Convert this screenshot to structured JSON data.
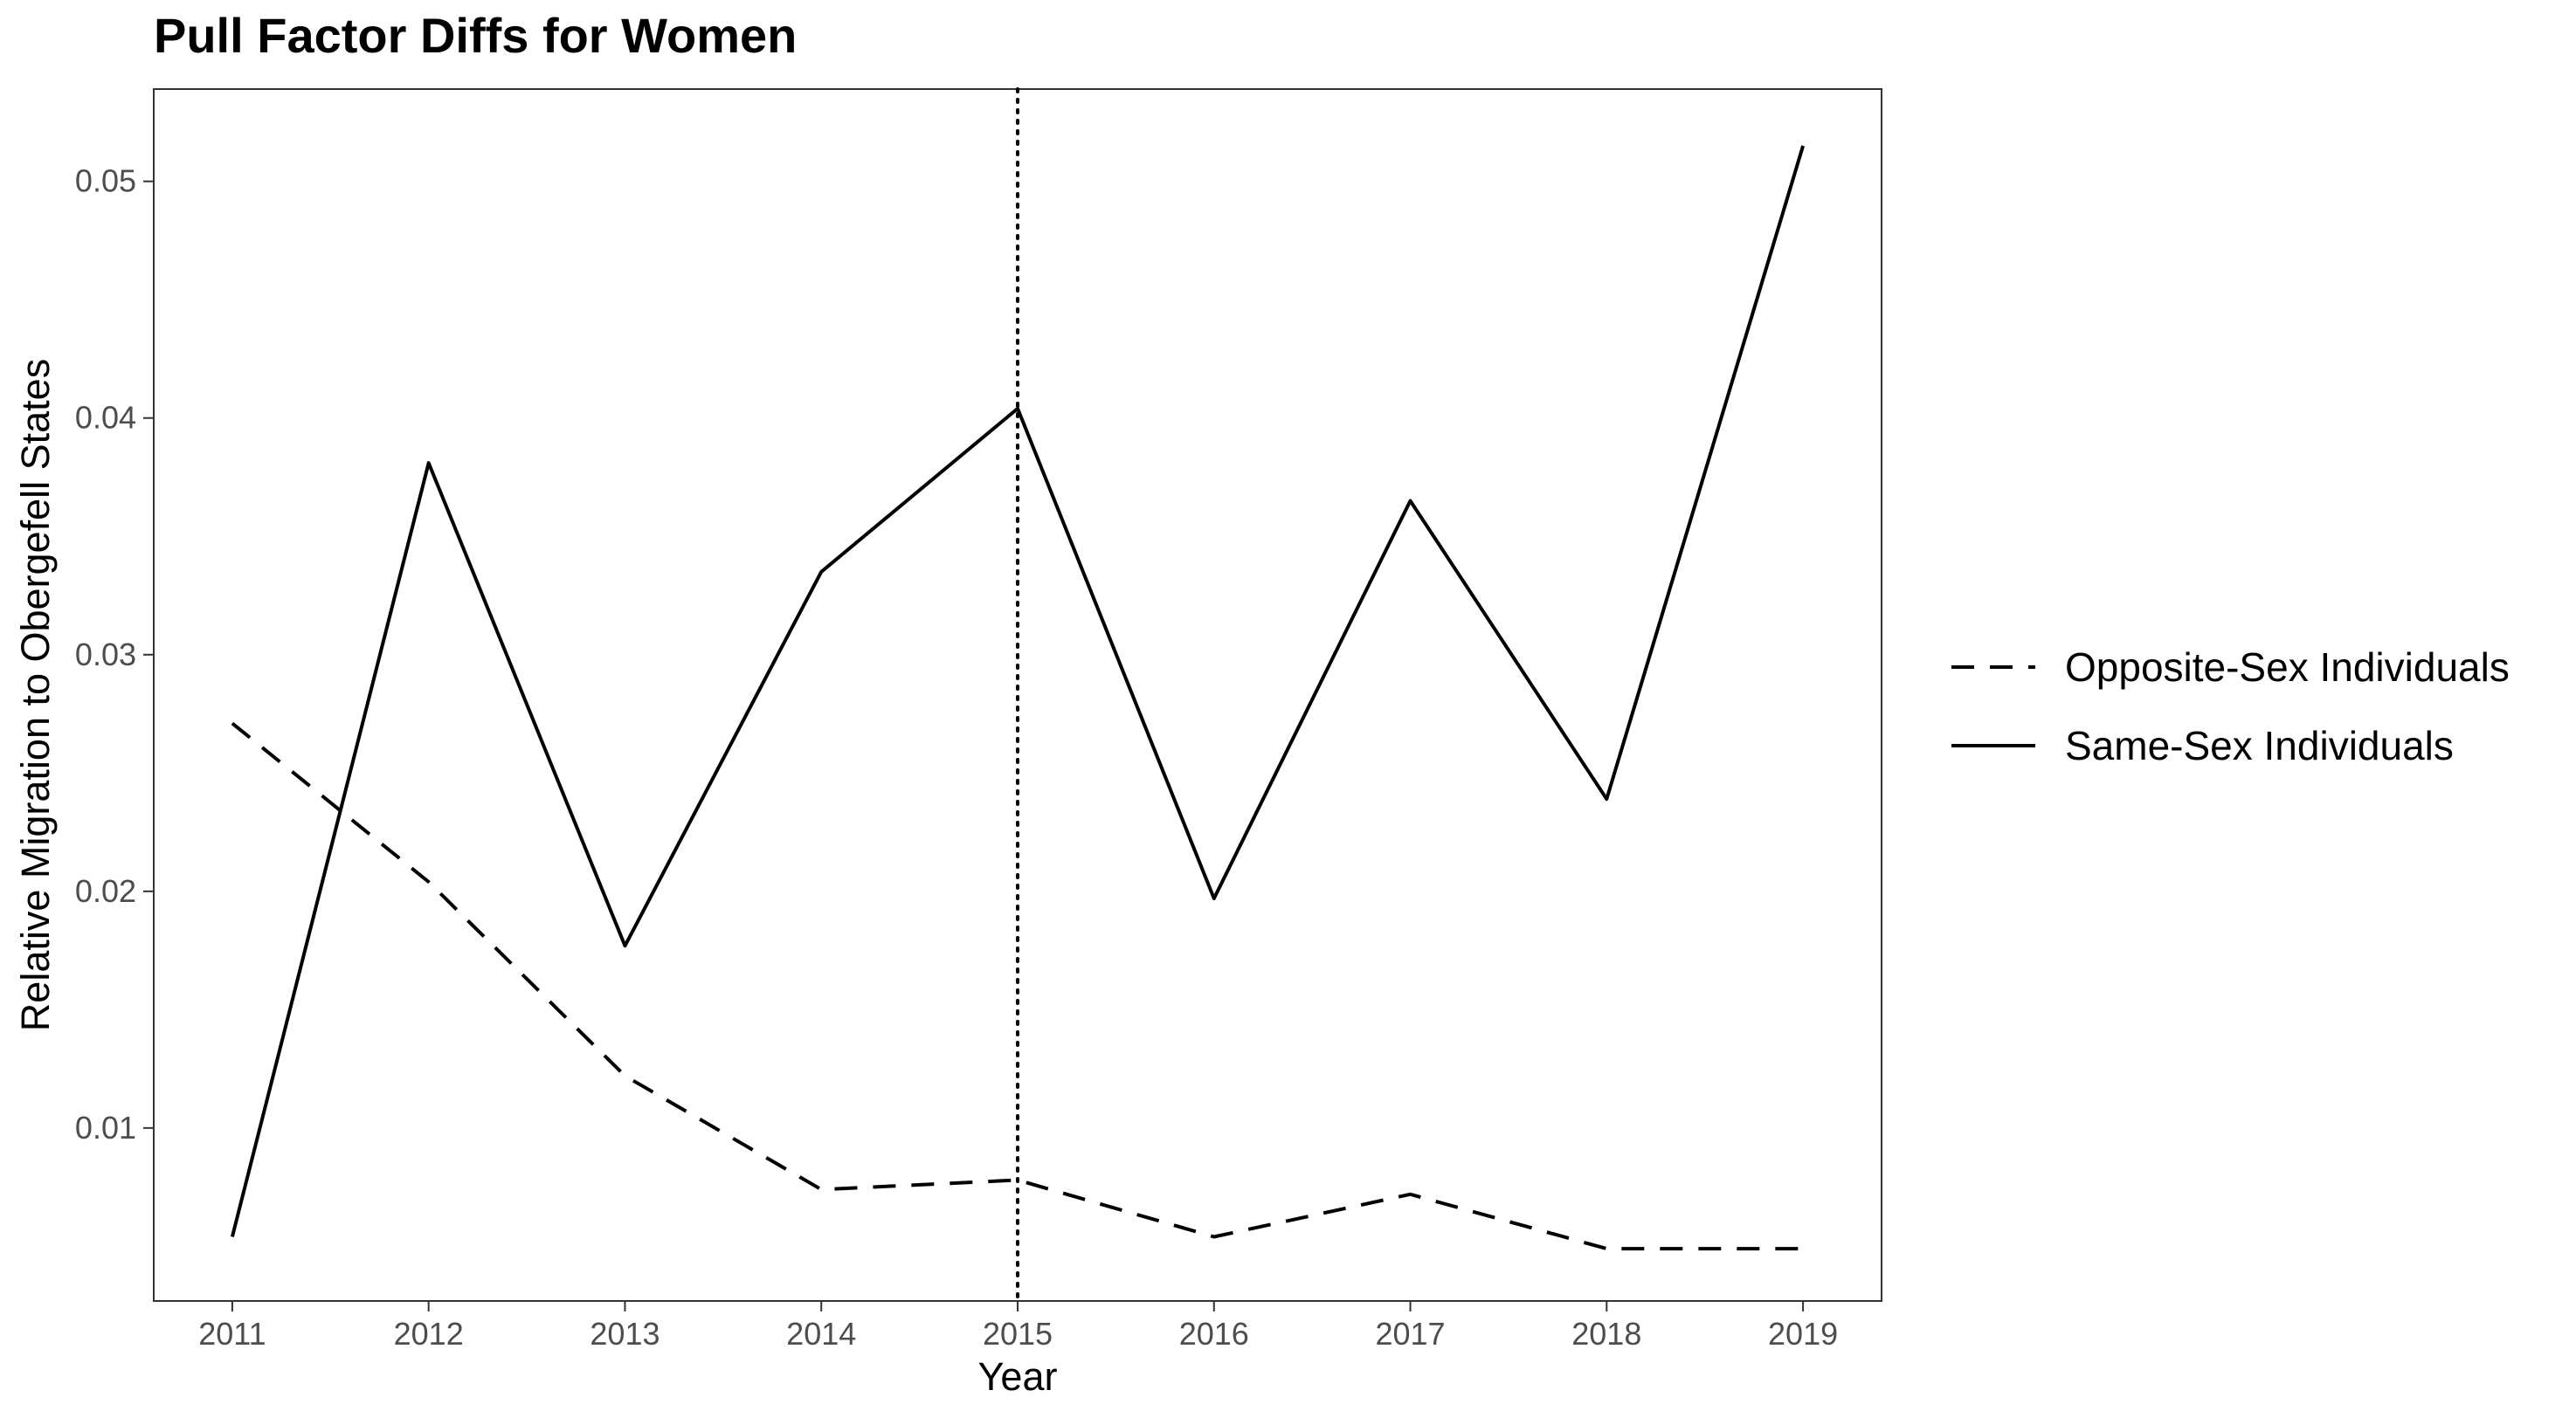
{
  "chart_data": {
    "type": "line",
    "title": "Pull Factor Diffs for Women",
    "xlabel": "Year",
    "ylabel": "Relative Migration to Obergefell States",
    "x": [
      2011,
      2012,
      2013,
      2014,
      2015,
      2016,
      2017,
      2018,
      2019
    ],
    "x_tick_labels": [
      "2011",
      "2012",
      "2013",
      "2014",
      "2015",
      "2016",
      "2017",
      "2018",
      "2019"
    ],
    "y_ticks": [
      0.01,
      0.02,
      0.03,
      0.04,
      0.05
    ],
    "y_tick_labels": [
      "0.01",
      "0.02",
      "0.03",
      "0.04",
      "0.05"
    ],
    "xlim": [
      2010.6,
      2019.4
    ],
    "ylim": [
      0.00269,
      0.0539
    ],
    "grid": false,
    "legend_position": "right",
    "series": [
      {
        "name": "Opposite-Sex Individuals",
        "linetype": "dashed",
        "color": "#000000",
        "values": [
          0.0271,
          0.0204,
          0.0122,
          0.0074,
          0.0078,
          0.0054,
          0.0072,
          0.0049,
          0.0049
        ]
      },
      {
        "name": "Same-Sex Individuals",
        "linetype": "solid",
        "color": "#000000",
        "values": [
          0.0054,
          0.0381,
          0.0177,
          0.0335,
          0.0404,
          0.0197,
          0.0365,
          0.0239,
          0.0515
        ]
      }
    ],
    "annotations": [
      {
        "type": "vline",
        "x": 2015,
        "linetype": "dotted"
      }
    ]
  }
}
